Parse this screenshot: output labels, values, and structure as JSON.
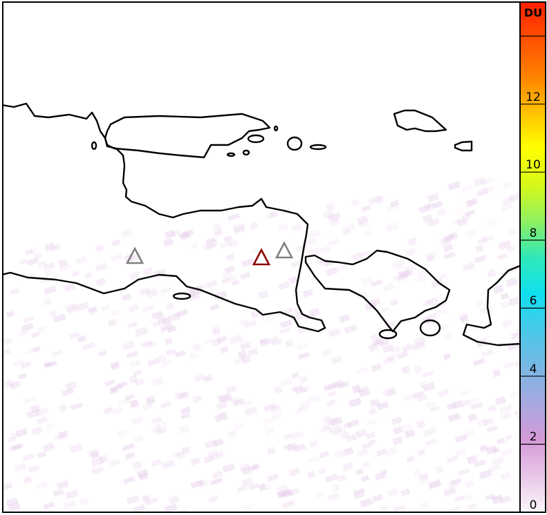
{
  "map": {
    "colorbar": {
      "unit": "DU",
      "tick_labels": [
        "0",
        "2",
        "4",
        "6",
        "8",
        "10",
        "12"
      ],
      "range": [
        0,
        15
      ],
      "colors": [
        "#fbf6fb",
        "#e8c6e8",
        "#d49ad8",
        "#a8a8e0",
        "#78b8e4",
        "#48c8e8",
        "#10e0f0",
        "#30e8b8",
        "#90f060",
        "#d8f818",
        "#ffff00",
        "#ffc000",
        "#ff8000",
        "#ff5000",
        "#ff2000"
      ]
    },
    "volcanoes": [
      {
        "status": "inactive",
        "color": "#808080"
      },
      {
        "status": "active",
        "color": "#8b0000"
      },
      {
        "status": "inactive",
        "color": "#808080"
      }
    ],
    "coastline_color": "#000000",
    "background_signal_color": "#e8d0ec"
  }
}
